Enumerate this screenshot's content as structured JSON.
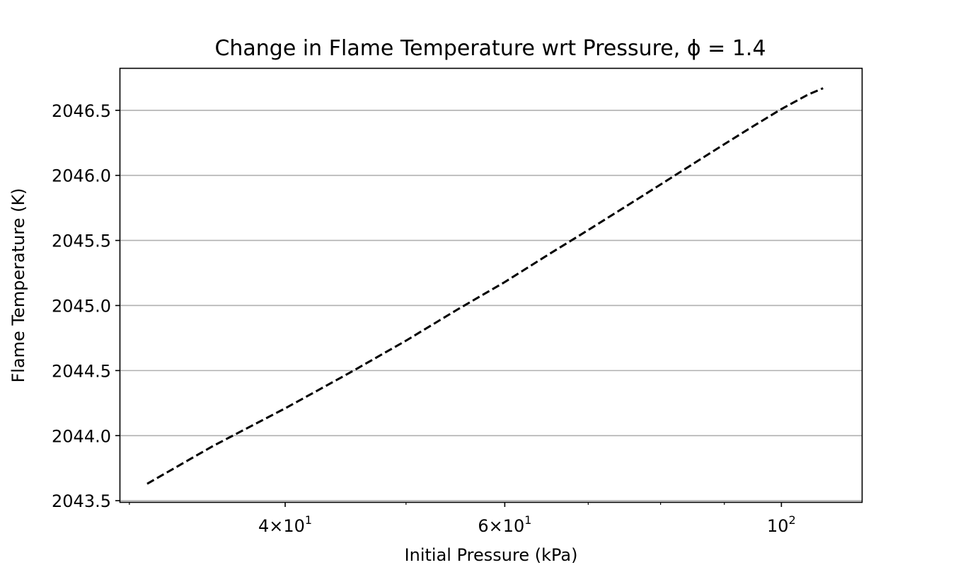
{
  "chart_data": {
    "type": "line",
    "title": "Change in Flame Temperature wrt Pressure, ϕ = 1.4",
    "xlabel": "Initial Pressure (kPa)",
    "ylabel": "Flame Temperature (K)",
    "xscale": "log",
    "xlim": [
      29.5,
      116
    ],
    "ylim": [
      2043.49,
      2046.82
    ],
    "grid": "y-major",
    "y_ticks": [
      2043.5,
      2044.0,
      2044.5,
      2045.0,
      2045.5,
      2046.0,
      2046.5
    ],
    "y_tick_labels": [
      "2043.5",
      "2044.0",
      "2044.5",
      "2045.0",
      "2045.5",
      "2046.0",
      "2046.5"
    ],
    "x_major_ticks": [
      {
        "value": 40,
        "mantissa": "4",
        "exp": "1"
      },
      {
        "value": 60,
        "mantissa": "6",
        "exp": "1"
      },
      {
        "value": 100,
        "mantissa": "",
        "exp": "2"
      }
    ],
    "x_minor_ticks": [
      30,
      50,
      70,
      80,
      90
    ],
    "series": [
      {
        "style": "dashed",
        "color": "#000000",
        "x": [
          31,
          35,
          40,
          45,
          50,
          55,
          60,
          65,
          70,
          75,
          80,
          85,
          90,
          95,
          100,
          105,
          108
        ],
        "y": [
          2043.63,
          2043.92,
          2044.21,
          2044.48,
          2044.73,
          2044.97,
          2045.18,
          2045.39,
          2045.58,
          2045.76,
          2045.93,
          2046.09,
          2046.24,
          2046.38,
          2046.51,
          2046.62,
          2046.67
        ]
      }
    ]
  }
}
